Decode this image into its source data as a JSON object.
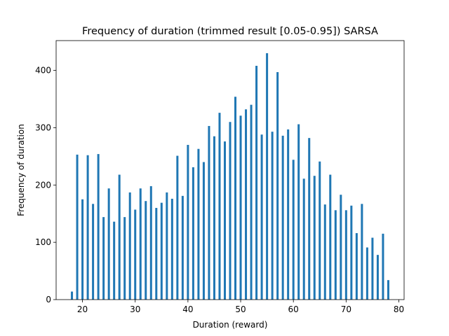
{
  "chart_data": {
    "type": "bar",
    "title": "Frequency of duration (trimmed result [0.05-0.95]) SARSA",
    "xlabel": "Duration (reward)",
    "ylabel": "Frequency of duration",
    "xlim": [
      15,
      81
    ],
    "ylim": [
      0,
      452
    ],
    "xticks": [
      20,
      30,
      40,
      50,
      60,
      70,
      80
    ],
    "yticks": [
      0,
      100,
      200,
      300,
      400
    ],
    "grid": false,
    "bar_color": "#1f77b4",
    "bar_width": 0.4,
    "x": [
      18,
      19,
      20,
      21,
      22,
      23,
      24,
      25,
      26,
      27,
      28,
      29,
      30,
      31,
      32,
      33,
      34,
      35,
      36,
      37,
      38,
      39,
      40,
      41,
      42,
      43,
      44,
      45,
      46,
      47,
      48,
      49,
      50,
      51,
      52,
      53,
      54,
      55,
      56,
      57,
      58,
      59,
      60,
      61,
      62,
      63,
      64,
      65,
      66,
      67,
      68,
      69,
      70,
      71,
      72,
      73,
      74,
      75,
      76,
      77,
      78
    ],
    "values": [
      14,
      253,
      175,
      252,
      167,
      254,
      144,
      194,
      136,
      218,
      144,
      187,
      157,
      194,
      172,
      198,
      160,
      169,
      187,
      176,
      251,
      181,
      270,
      231,
      263,
      240,
      303,
      285,
      326,
      276,
      310,
      354,
      321,
      332,
      340,
      408,
      288,
      430,
      293,
      397,
      286,
      297,
      244,
      306,
      211,
      282,
      216,
      241,
      166,
      218,
      156,
      183,
      156,
      164,
      116,
      167,
      91,
      108,
      78,
      115,
      34
    ]
  }
}
